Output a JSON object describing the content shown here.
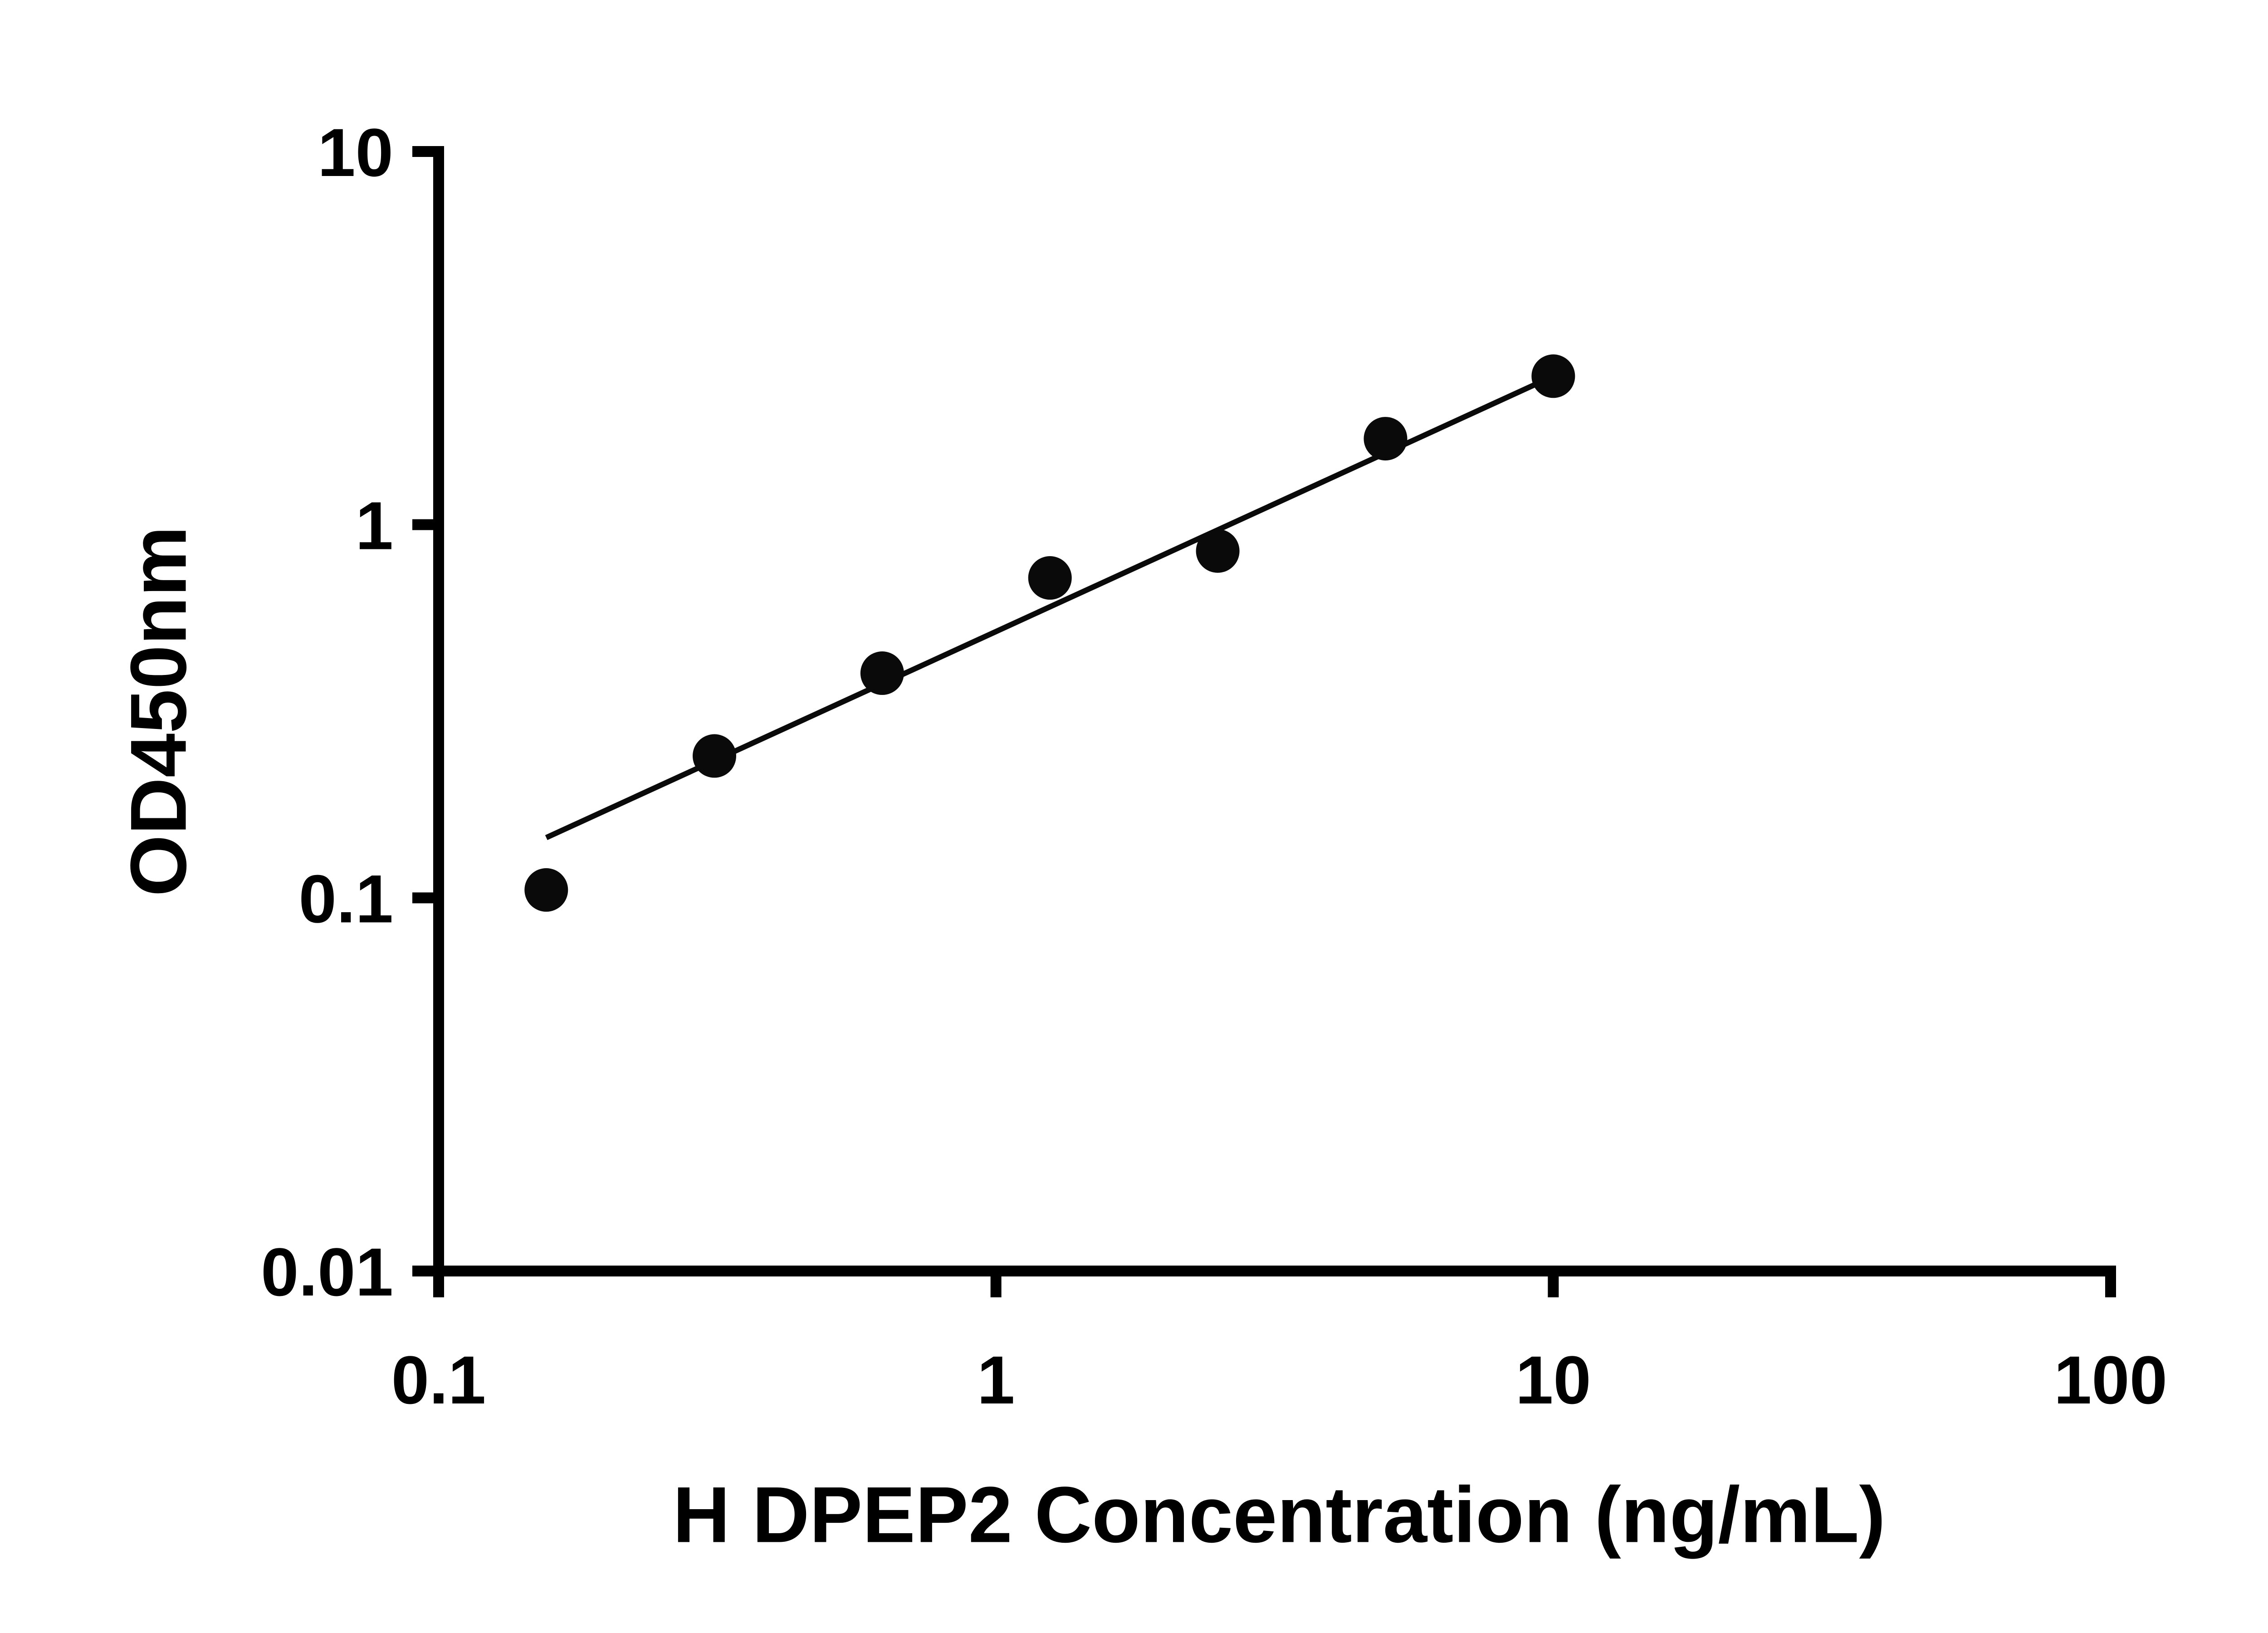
{
  "chart_data": {
    "type": "scatter",
    "title": "",
    "xlabel": "H DPEP2 Concentration (ng/mL)",
    "ylabel": "OD450nm",
    "xscale": "log",
    "yscale": "log",
    "xlim": [
      0.1,
      100
    ],
    "ylim": [
      0.01,
      10
    ],
    "grid": false,
    "legend": false,
    "x_ticks": [
      {
        "value": 0.1,
        "label": "0.1"
      },
      {
        "value": 1,
        "label": "1"
      },
      {
        "value": 10,
        "label": "10"
      },
      {
        "value": 100,
        "label": "100"
      }
    ],
    "y_ticks": [
      {
        "value": 0.01,
        "label": "0.01"
      },
      {
        "value": 0.1,
        "label": "0.1"
      },
      {
        "value": 1,
        "label": "1"
      },
      {
        "value": 10,
        "label": "10"
      }
    ],
    "points": [
      {
        "x": 0.156,
        "y": 0.105
      },
      {
        "x": 0.3125,
        "y": 0.24
      },
      {
        "x": 0.625,
        "y": 0.4
      },
      {
        "x": 1.25,
        "y": 0.72
      },
      {
        "x": 2.5,
        "y": 0.85
      },
      {
        "x": 5,
        "y": 1.7
      },
      {
        "x": 10,
        "y": 2.5
      }
    ],
    "trend_line": {
      "x1": 0.156,
      "y1": 0.145,
      "x2": 10,
      "y2": 2.5
    },
    "marker_color": "#0a0a0a",
    "line_color": "#0a0a0a",
    "axis_color": "#000000"
  }
}
